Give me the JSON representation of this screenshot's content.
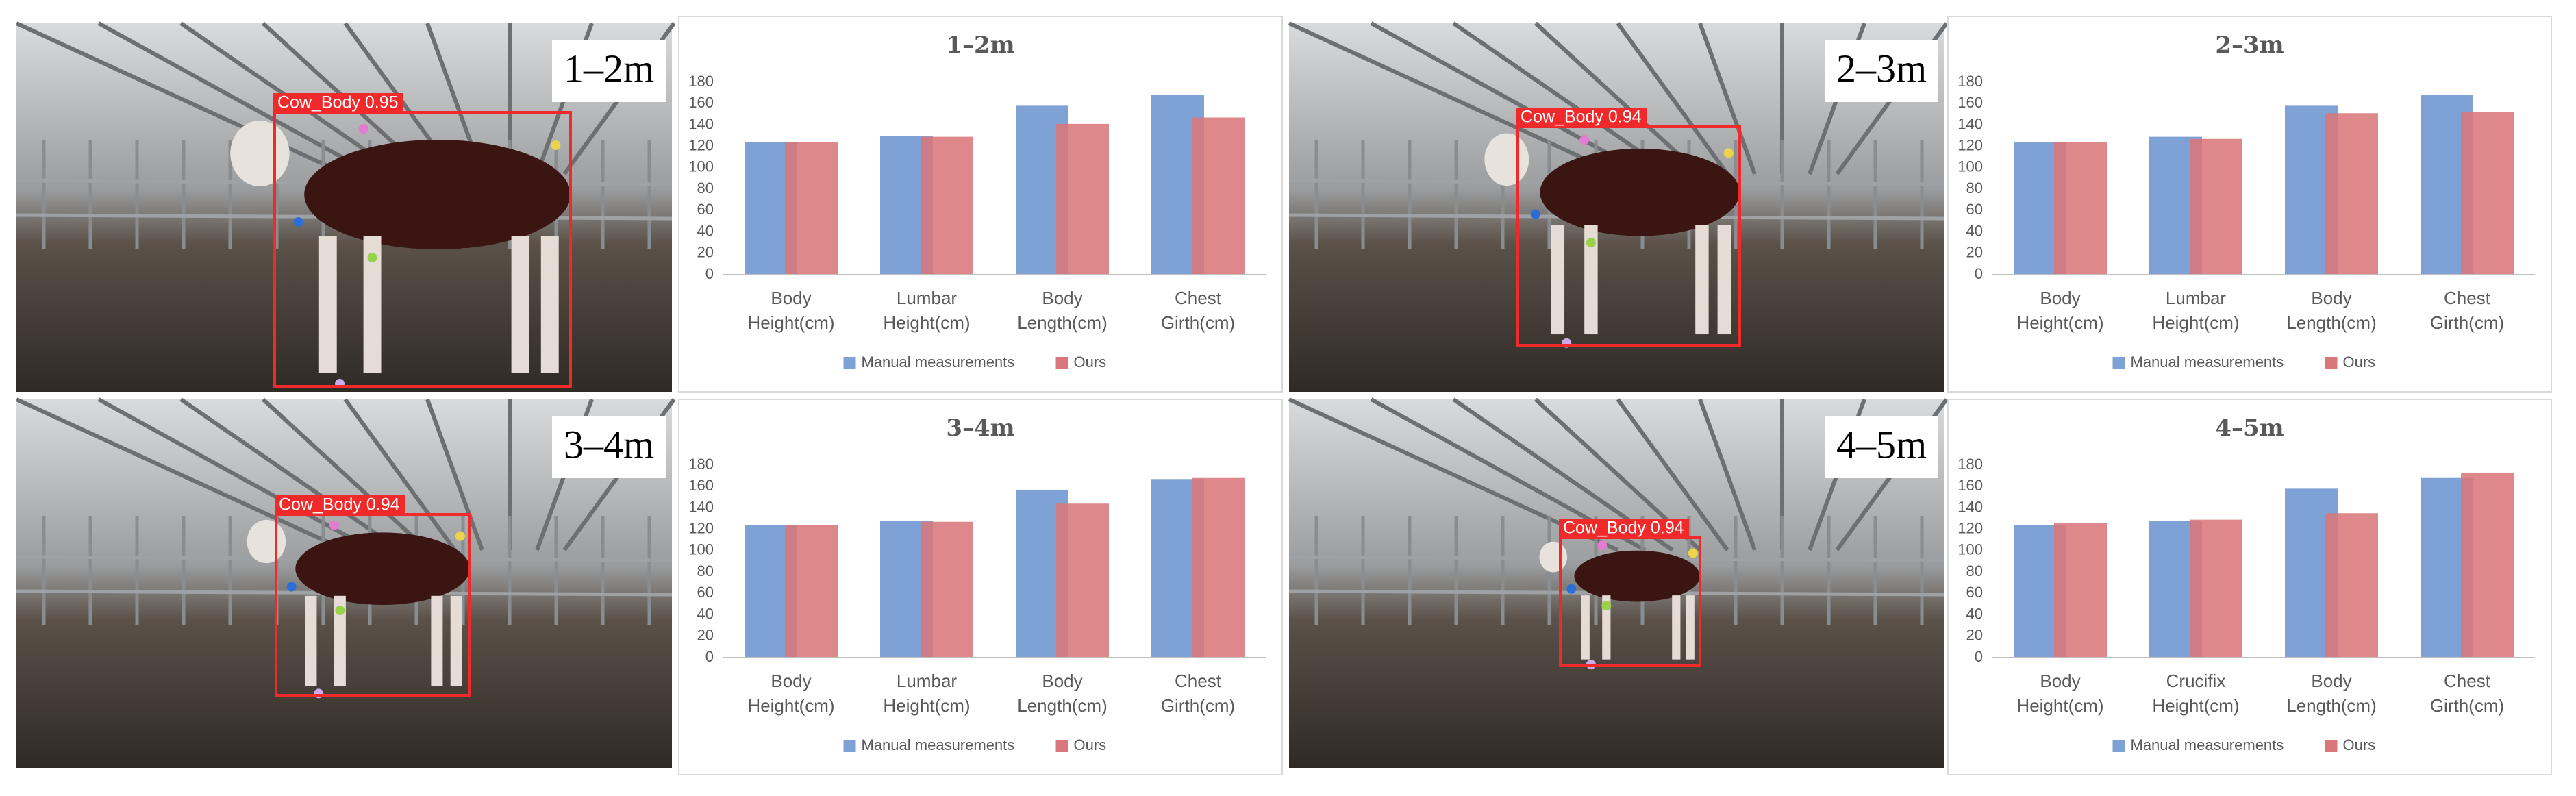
{
  "photos": [
    {
      "distance": "1–2m",
      "detection": "Cow_Body 0.95"
    },
    {
      "distance": "2–3m",
      "detection": "Cow_Body 0.94"
    },
    {
      "distance": "3–4m",
      "detection": "Cow_Body 0.94"
    },
    {
      "distance": "4–5m",
      "detection": "Cow_Body 0.94"
    }
  ],
  "chart_data": [
    {
      "type": "bar",
      "title": "1–2m",
      "categories": [
        "Body Height(cm)",
        "Lumbar Height(cm)",
        "Body Length(cm)",
        "Chest Girth(cm)"
      ],
      "series": [
        {
          "name": "Manual measurements",
          "color": "#7fa2d6",
          "values": [
            124,
            130,
            158,
            168
          ]
        },
        {
          "name": "Ours",
          "color": "#d9777c",
          "values": [
            124,
            129,
            141,
            147
          ]
        }
      ],
      "ylim": [
        0,
        180
      ],
      "yticks": [
        0,
        20,
        40,
        60,
        80,
        100,
        120,
        140,
        160,
        180
      ],
      "grid": false,
      "legend": "bottom"
    },
    {
      "type": "bar",
      "title": "2–3m",
      "categories": [
        "Body Height(cm)",
        "Lumbar Height(cm)",
        "Body Length(cm)",
        "Chest Girth(cm)"
      ],
      "series": [
        {
          "name": "Manual measurements",
          "color": "#7fa2d6",
          "values": [
            124,
            129,
            158,
            168
          ]
        },
        {
          "name": "Ours",
          "color": "#d9777c",
          "values": [
            124,
            127,
            151,
            152
          ]
        }
      ],
      "ylim": [
        0,
        180
      ],
      "yticks": [
        0,
        20,
        40,
        60,
        80,
        100,
        120,
        140,
        160,
        180
      ],
      "grid": false,
      "legend": "bottom"
    },
    {
      "type": "bar",
      "title": "3–4m",
      "categories": [
        "Body Height(cm)",
        "Lumbar Height(cm)",
        "Body Length(cm)",
        "Chest Girth(cm)"
      ],
      "series": [
        {
          "name": "Manual measurements",
          "color": "#7fa2d6",
          "values": [
            124,
            128,
            157,
            167
          ]
        },
        {
          "name": "Ours",
          "color": "#d9777c",
          "values": [
            124,
            127,
            144,
            168
          ]
        }
      ],
      "ylim": [
        0,
        180
      ],
      "yticks": [
        0,
        20,
        40,
        60,
        80,
        100,
        120,
        140,
        160,
        180
      ],
      "grid": false,
      "legend": "bottom"
    },
    {
      "type": "bar",
      "title": "4–5m",
      "categories": [
        "Body Height(cm)",
        "Crucifix Height(cm)",
        "Body Length(cm)",
        "Chest Girth(cm)"
      ],
      "series": [
        {
          "name": "Manual measurements",
          "color": "#7fa2d6",
          "values": [
            124,
            128,
            158,
            168
          ]
        },
        {
          "name": "Ours",
          "color": "#d9777c",
          "values": [
            126,
            129,
            135,
            173
          ]
        }
      ],
      "ylim": [
        0,
        180
      ],
      "yticks": [
        0,
        20,
        40,
        60,
        80,
        100,
        120,
        140,
        160,
        180
      ],
      "grid": false,
      "legend": "bottom"
    }
  ]
}
